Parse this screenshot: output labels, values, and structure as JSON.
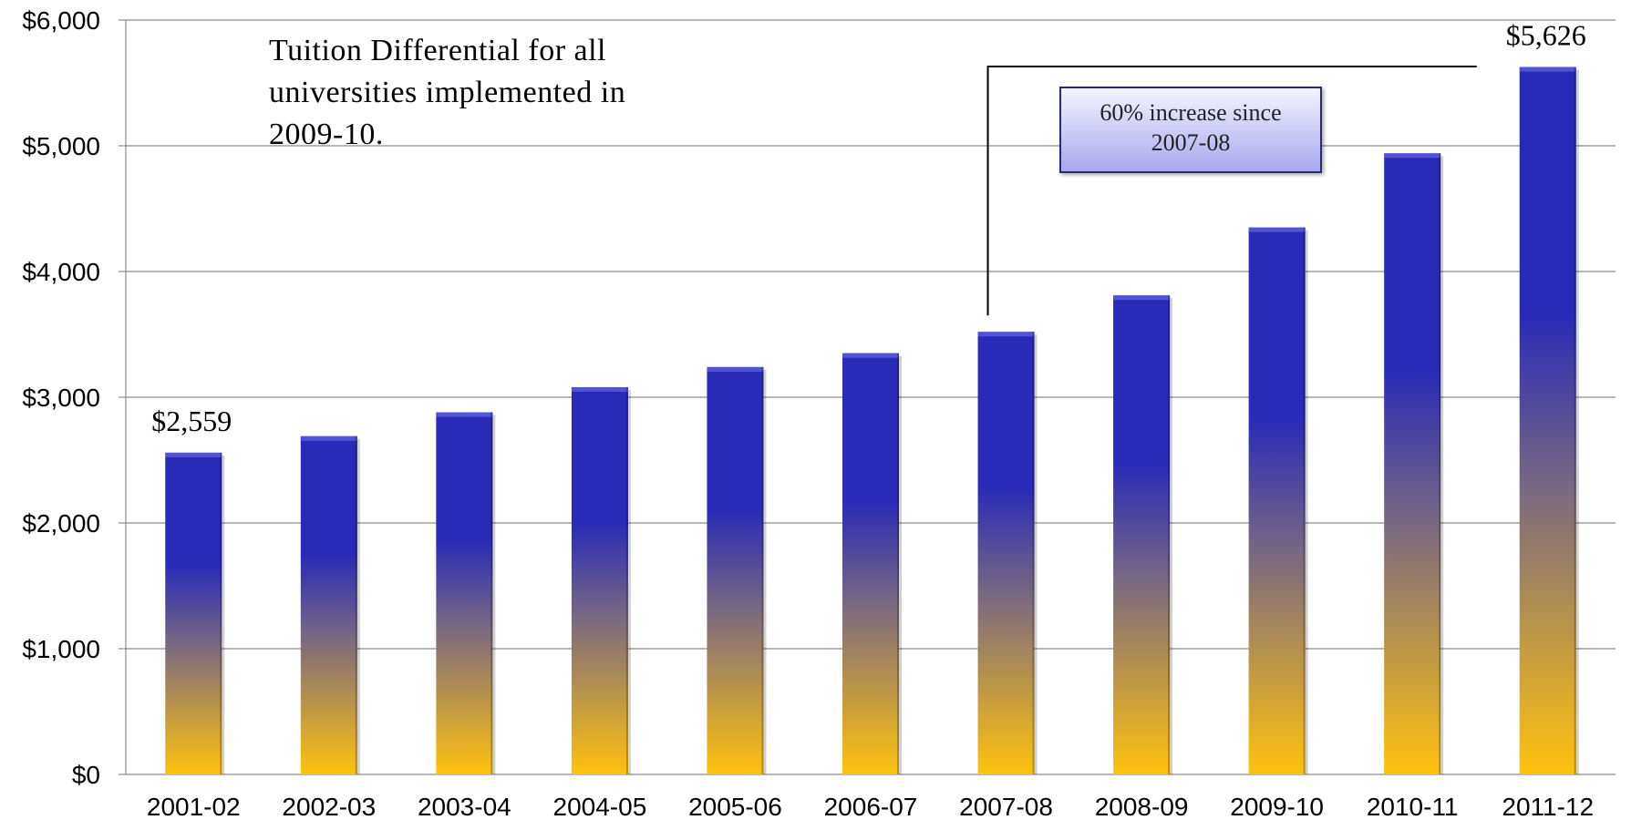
{
  "chart_data": {
    "type": "bar",
    "categories": [
      "2001-02",
      "2002-03",
      "2003-04",
      "2004-05",
      "2005-06",
      "2006-07",
      "2007-08",
      "2008-09",
      "2009-10",
      "2010-11",
      "2011-12"
    ],
    "values": [
      2559,
      2690,
      2880,
      3080,
      3240,
      3350,
      3520,
      3810,
      4350,
      4940,
      5626
    ],
    "ylim": [
      0,
      6000
    ],
    "y_ticks": [
      "$0",
      "$1,000",
      "$2,000",
      "$3,000",
      "$4,000",
      "$5,000",
      "$6,000"
    ],
    "y_tick_values": [
      0,
      1000,
      2000,
      3000,
      4000,
      5000,
      6000
    ],
    "grid": true,
    "data_labels": [
      {
        "category": "2001-02",
        "text": "$2,559"
      },
      {
        "category": "2011-12",
        "text": "$5,626"
      }
    ],
    "annotations": {
      "note_lines": [
        "Tuition Differential for all",
        "universities implemented in",
        "2009-10."
      ],
      "callout_lines": [
        "60% increase since",
        "2007-08"
      ],
      "bracket_from": "2007-08",
      "bracket_to": "2011-12"
    },
    "colors": {
      "bar_top": "#2a2ab8",
      "bar_mid": "#7a6a80",
      "bar_bottom": "#ffc20e",
      "gridline": "#8c8c8c",
      "callout_fill_top": "#f4f4ff",
      "callout_fill_bottom": "#a8a8ee",
      "callout_border": "#2b2b7a"
    }
  }
}
